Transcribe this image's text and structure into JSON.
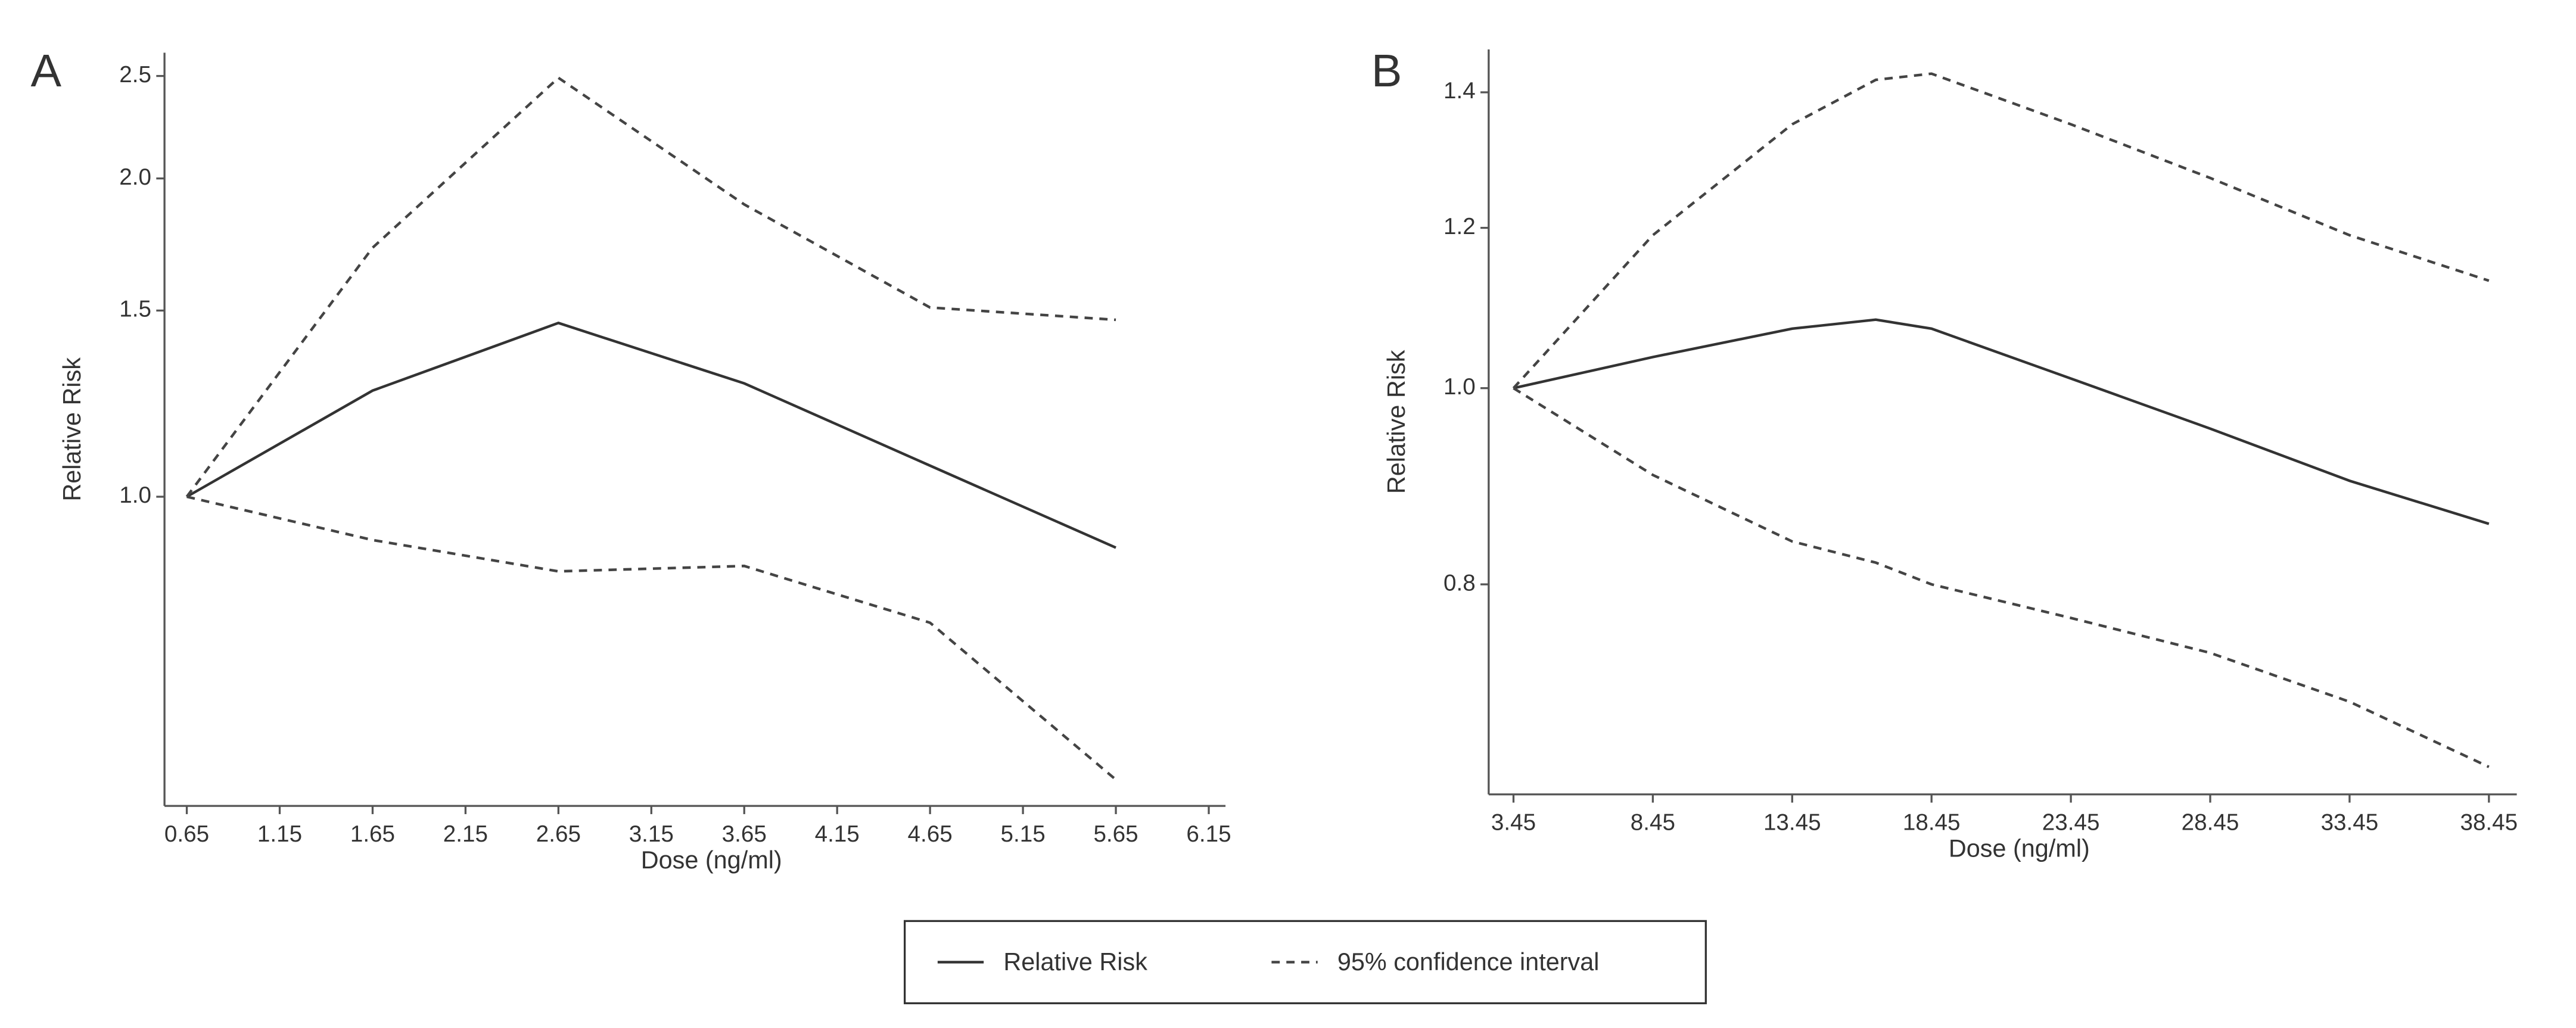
{
  "chart_data": [
    {
      "type": "line",
      "panel": "A",
      "ylog": true,
      "xlabel": "Dose (ng/ml)",
      "ylabel": "Relative Risk",
      "x": [
        0.65,
        1.65,
        2.65,
        3.65,
        4.65,
        5.65
      ],
      "xlim": [
        0.53,
        6.24
      ],
      "xticks": [
        0.65,
        1.15,
        1.65,
        2.15,
        2.65,
        3.15,
        3.65,
        4.15,
        4.65,
        5.15,
        5.65,
        6.15
      ],
      "ylim": [
        0.51,
        2.63
      ],
      "yticks": [
        {
          "value": 1,
          "label": "1.0"
        },
        1.5,
        {
          "value": 2,
          "label": "2.0"
        },
        2.5
      ],
      "series": [
        {
          "name": "Relative Risk",
          "color": "#333333",
          "style": "solid",
          "values": [
            1.0,
            1.26,
            1.46,
            1.28,
            1.07,
            0.895
          ]
        },
        {
          "name": "95% confidence interval",
          "color": "#444444",
          "style": "dashed",
          "values": [
            1.0,
            1.72,
            2.49,
            1.89,
            1.51,
            1.47
          ],
          "lower": [
            1.0,
            0.91,
            0.85,
            0.86,
            0.76,
            0.54
          ]
        }
      ]
    },
    {
      "type": "line",
      "panel": "B",
      "ylog": true,
      "xlabel": "Dose (ng/ml)",
      "ylabel": "Relative Risk",
      "x": [
        3.45,
        8.45,
        13.45,
        16.45,
        18.45,
        23.45,
        28.45,
        33.45,
        38.45
      ],
      "xlim": [
        2.56,
        39.45
      ],
      "xticks": [
        3.45,
        8.45,
        13.45,
        18.45,
        23.45,
        28.45,
        33.45,
        38.45
      ],
      "ylim": [
        0.63,
        1.47
      ],
      "yticks": [
        0.8,
        {
          "value": 1,
          "label": "1.0"
        },
        1.2,
        1.4
      ],
      "series": [
        {
          "color": "#333333",
          "style": "solid",
          "values": [
            1.0,
            1.036,
            1.07,
            1.081,
            1.07,
            1.011,
            0.955,
            0.9,
            0.857
          ]
        },
        {
          "color": "#444444",
          "style": "dashed",
          "values": [
            1.0,
            1.19,
            1.35,
            1.42,
            1.43,
            1.35,
            1.27,
            1.19,
            1.13
          ],
          "lower": [
            1.0,
            0.906,
            0.84,
            0.82,
            0.8,
            0.77,
            0.74,
            0.7,
            0.65
          ]
        }
      ]
    }
  ]
}
